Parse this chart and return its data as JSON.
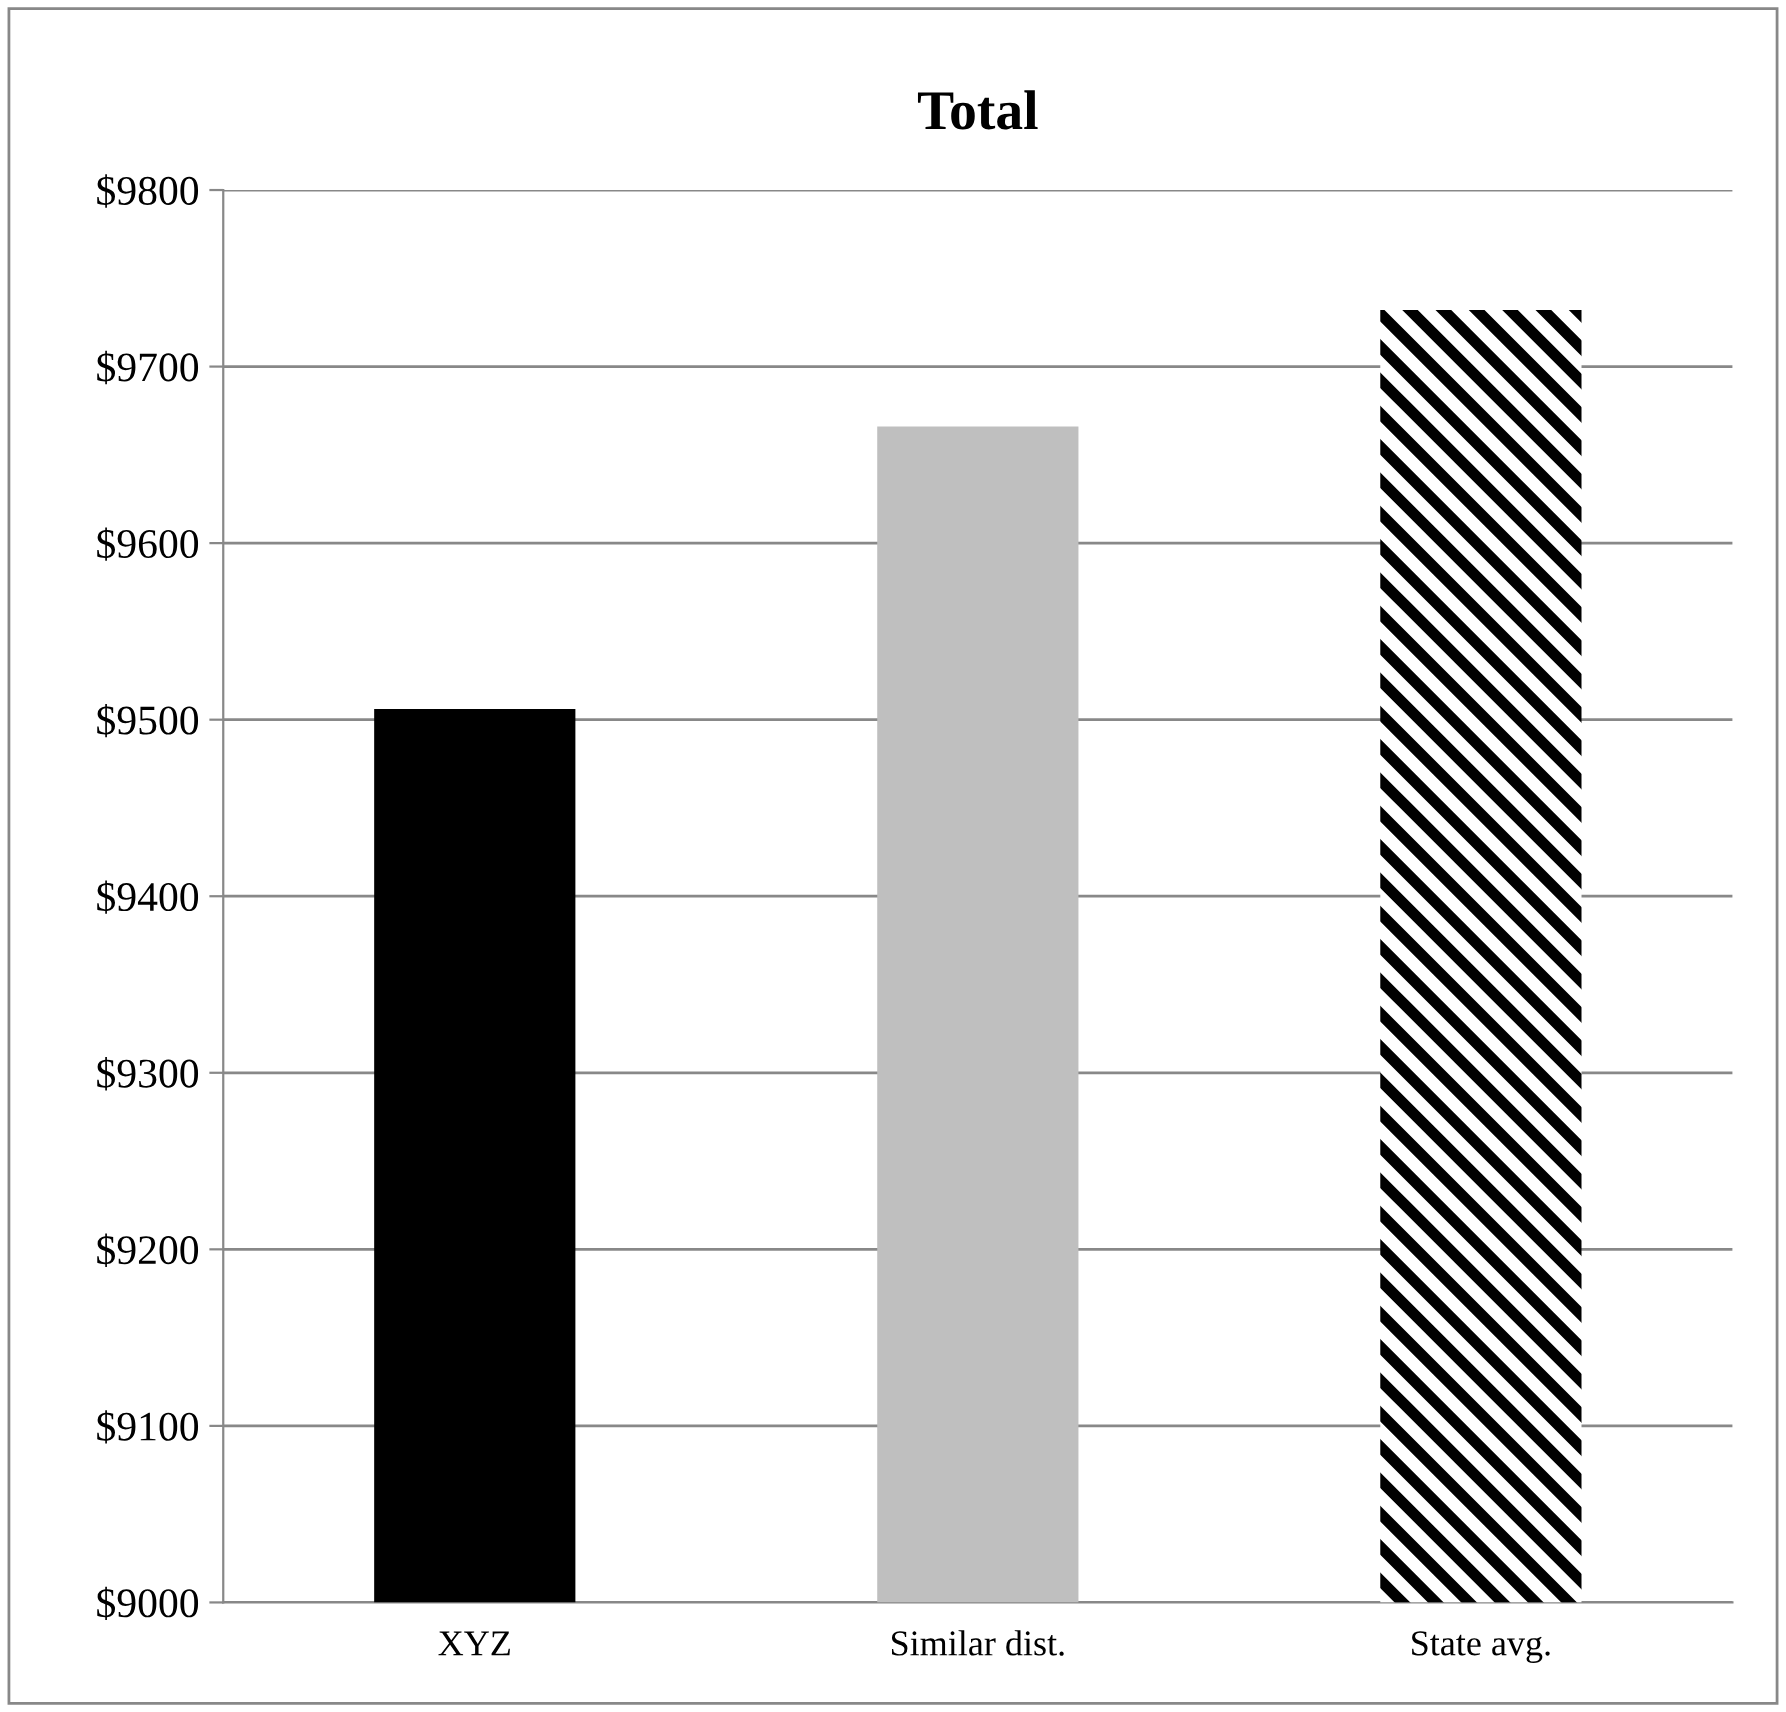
{
  "chart_data": {
    "type": "bar",
    "title": "Total",
    "categories": [
      "XYZ",
      "Similar dist.",
      "State avg."
    ],
    "values": [
      9506,
      9666,
      9732
    ],
    "colors": [
      "#000000",
      "#bfbfbf",
      "#ffffff"
    ],
    "ylim": [
      9000,
      9800
    ],
    "yticks": [
      {
        "value": 9000,
        "label": "$9000"
      },
      {
        "value": 9100,
        "label": "$9100"
      },
      {
        "value": 9200,
        "label": "$9200"
      },
      {
        "value": 9300,
        "label": "$9300"
      },
      {
        "value": 9400,
        "label": "$9400"
      },
      {
        "value": 9500,
        "label": "$9500"
      },
      {
        "value": 9600,
        "label": "$9600"
      },
      {
        "value": 9700,
        "label": "$9700"
      },
      {
        "value": 9800,
        "label": "$9800"
      }
    ],
    "grid": "y",
    "legend": false
  }
}
